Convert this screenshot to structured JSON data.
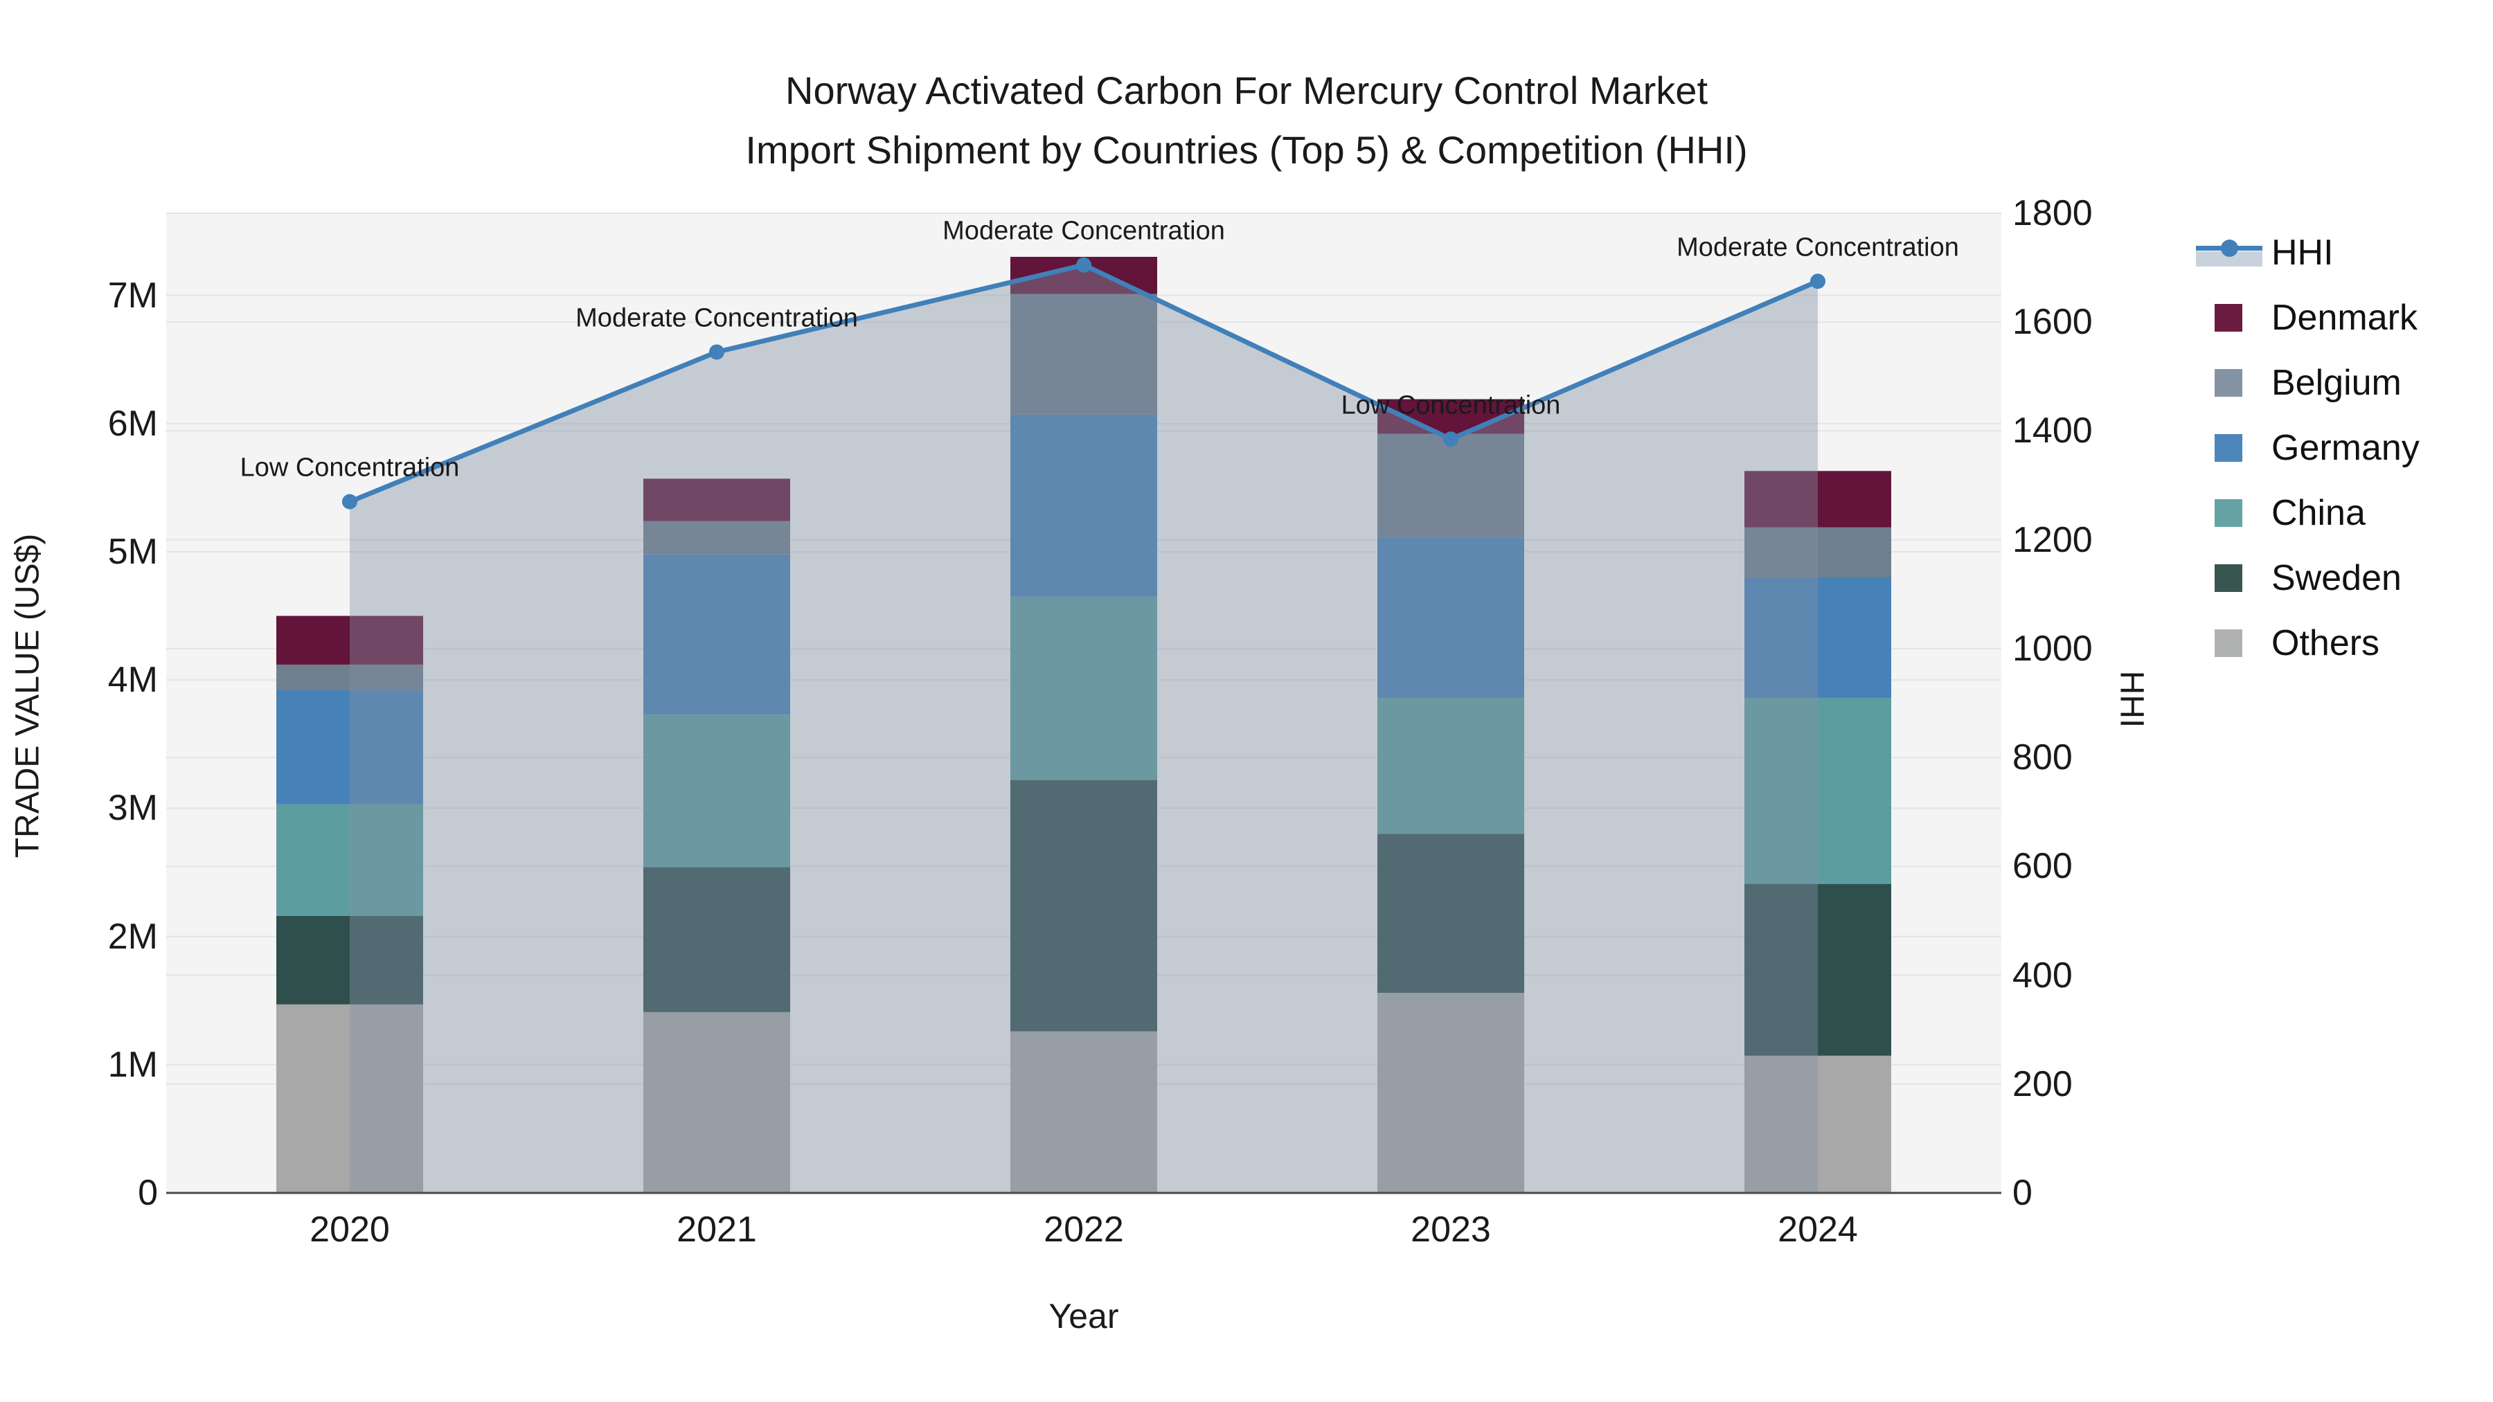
{
  "title": {
    "line1": "Norway Activated Carbon For Mercury Control Market",
    "line2": "Import Shipment by Countries (Top 5) & Competition (HHI)"
  },
  "axes": {
    "left": {
      "title": "TRADE VALUE (US$)",
      "tick_labels": [
        "0",
        "1M",
        "2M",
        "3M",
        "4M",
        "5M",
        "6M",
        "7M"
      ],
      "tick_values_m": [
        0,
        1,
        2,
        3,
        4,
        5,
        6,
        7
      ],
      "range_m": [
        0,
        7.64
      ]
    },
    "right": {
      "title": "HHI",
      "tick_labels": [
        "0",
        "200",
        "400",
        "600",
        "800",
        "1000",
        "1200",
        "1400",
        "1600",
        "1800"
      ],
      "tick_values": [
        0,
        200,
        400,
        600,
        800,
        1000,
        1200,
        1400,
        1600,
        1800
      ],
      "range": [
        0,
        1800
      ]
    },
    "x": {
      "title": "Year",
      "categories": [
        "2020",
        "2021",
        "2022",
        "2023",
        "2024"
      ]
    }
  },
  "legend": {
    "items": [
      {
        "label": "HHI",
        "type": "line",
        "color": "#4180B9",
        "band_color": "#C9D2DC"
      },
      {
        "label": "Denmark",
        "type": "swatch",
        "color": "#6A1B40"
      },
      {
        "label": "Belgium",
        "type": "swatch",
        "color": "#8393A4"
      },
      {
        "label": "Germany",
        "type": "swatch",
        "color": "#4C86BB"
      },
      {
        "label": "China",
        "type": "swatch",
        "color": "#66A3A4"
      },
      {
        "label": "Sweden",
        "type": "swatch",
        "color": "#395550"
      },
      {
        "label": "Others",
        "type": "swatch",
        "color": "#B0B2B1"
      }
    ]
  },
  "chart_data": {
    "type": "bar+line",
    "categories": [
      "2020",
      "2021",
      "2022",
      "2023",
      "2024"
    ],
    "bar_unit": "M US$",
    "series": [
      {
        "name": "Others",
        "color": "#A8A8A8",
        "values": [
          1.47,
          1.41,
          1.26,
          1.56,
          1.07
        ]
      },
      {
        "name": "Sweden",
        "color": "#2F4F4D",
        "values": [
          0.69,
          1.13,
          1.96,
          1.24,
          1.34
        ]
      },
      {
        "name": "China",
        "color": "#5C9DA0",
        "values": [
          0.87,
          1.19,
          1.43,
          1.06,
          1.45
        ]
      },
      {
        "name": "Germany",
        "color": "#4681B8",
        "values": [
          0.89,
          1.25,
          1.42,
          1.25,
          0.94
        ]
      },
      {
        "name": "Belgium",
        "color": "#6E7F8E",
        "values": [
          0.2,
          0.26,
          0.94,
          0.81,
          0.39
        ]
      },
      {
        "name": "Denmark",
        "color": "#62143A",
        "values": [
          0.38,
          0.33,
          0.29,
          0.27,
          0.44
        ]
      }
    ],
    "bar_totals_m": [
      4.5,
      5.57,
      7.3,
      6.19,
      5.63
    ],
    "hhi": {
      "name": "HHI",
      "values": [
        1270,
        1545,
        1705,
        1385,
        1675
      ],
      "line_color": "#4180B9",
      "area_fill": "rgba(130,145,165,0.42)"
    },
    "annotations": [
      {
        "category": "2020",
        "text": "Low Concentration"
      },
      {
        "category": "2021",
        "text": "Moderate Concentration"
      },
      {
        "category": "2022",
        "text": "Moderate Concentration"
      },
      {
        "category": "2023",
        "text": "Low Concentration"
      },
      {
        "category": "2024",
        "text": "Moderate Concentration"
      }
    ],
    "plot_background": "#F4F4F4",
    "gridline_color": "#E4E4E8",
    "axisline_color": "#4A4A4A",
    "legend_position": "right",
    "grid_on": true
  }
}
